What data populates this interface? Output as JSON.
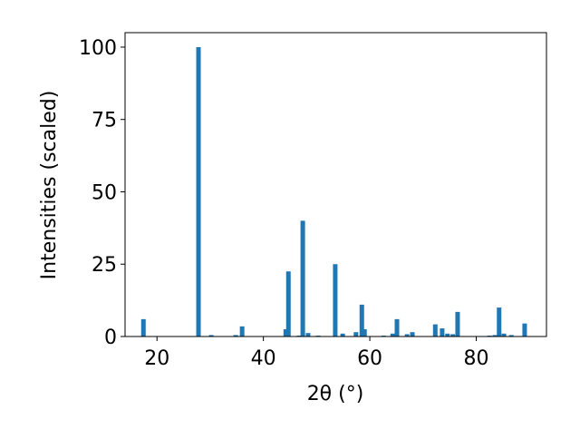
{
  "chart_data": {
    "type": "bar",
    "x_label": "2θ (°)",
    "y_label": "Intensities (scaled)",
    "x": [
      17.45,
      27.8,
      30.2,
      34.8,
      36.0,
      44.2,
      44.7,
      46.7,
      47.4,
      48.4,
      50.3,
      53.5,
      54.9,
      57.4,
      58.5,
      59.0,
      62.6,
      64.3,
      65.1,
      67.0,
      68.0,
      72.3,
      73.6,
      74.6,
      75.6,
      76.5,
      82.5,
      83.5,
      84.3,
      85.2,
      86.6,
      89.1
    ],
    "values": [
      6,
      100,
      0.5,
      0.5,
      3.5,
      2.5,
      22.5,
      0.3,
      40,
      1.2,
      0.3,
      25,
      1,
      1.5,
      11,
      2.5,
      0.3,
      1,
      6,
      0.8,
      1.5,
      4.2,
      2.8,
      1,
      0.8,
      8.5,
      0.3,
      0.5,
      10,
      1,
      0.5,
      4.5
    ],
    "color": "#1f77b4",
    "xlim": [
      14.0,
      93.2
    ],
    "ylim": [
      0,
      105
    ],
    "xticks": [
      20,
      40,
      60,
      80
    ],
    "yticks": [
      0,
      25,
      50,
      75,
      100
    ]
  }
}
